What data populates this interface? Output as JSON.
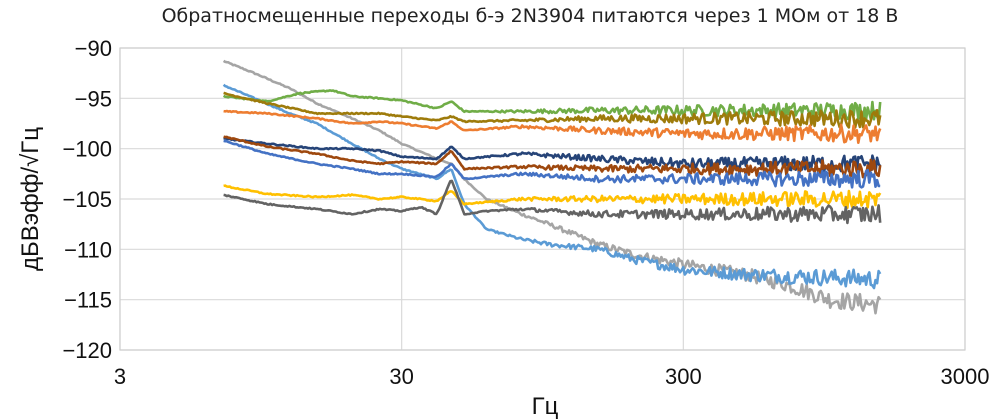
{
  "chart_data": {
    "type": "line",
    "title": "Обратносмещенные переходы б-э 2N3904 питаются через 1 МОм от 18 В",
    "xlabel": "Гц",
    "ylabel": "дБВэфф/√Гц",
    "x_scale": "log",
    "xlim": [
      3,
      3000
    ],
    "ylim": [
      -120,
      -90
    ],
    "x_ticks": [
      3,
      30,
      300,
      3000
    ],
    "x_tick_labels": [
      "3",
      "30",
      "300",
      "3000"
    ],
    "y_ticks": [
      -90,
      -95,
      -100,
      -105,
      -110,
      -115,
      -120
    ],
    "y_tick_labels": [
      "−90",
      "−95",
      "−100",
      "−105",
      "−110",
      "−115",
      "−120"
    ],
    "grid": true,
    "legend": "none",
    "series": [
      {
        "color": "#a5a5a5",
        "points": [
          [
            7,
            -91.3
          ],
          [
            9,
            -92.5
          ],
          [
            12,
            -94
          ],
          [
            15,
            -95.5
          ],
          [
            20,
            -97
          ],
          [
            25,
            -98.2
          ],
          [
            30,
            -99.5
          ],
          [
            40,
            -101
          ],
          [
            45,
            -101.5
          ],
          [
            50,
            -103
          ],
          [
            60,
            -105
          ],
          [
            80,
            -106.5
          ],
          [
            100,
            -107.5
          ],
          [
            150,
            -109.5
          ],
          [
            200,
            -110.5
          ],
          [
            300,
            -111.5
          ],
          [
            500,
            -112.5
          ],
          [
            700,
            -113.5
          ],
          [
            1000,
            -115
          ],
          [
            1500,
            -115.5
          ]
        ]
      },
      {
        "color": "#5b9bd5",
        "points": [
          [
            7,
            -93.7
          ],
          [
            9,
            -95
          ],
          [
            12,
            -96.5
          ],
          [
            15,
            -97.5
          ],
          [
            20,
            -99.5
          ],
          [
            25,
            -101
          ],
          [
            30,
            -102
          ],
          [
            40,
            -103
          ],
          [
            45,
            -102
          ],
          [
            50,
            -105.5
          ],
          [
            60,
            -108
          ],
          [
            80,
            -109
          ],
          [
            100,
            -109.5
          ],
          [
            150,
            -110
          ],
          [
            200,
            -111
          ],
          [
            300,
            -112
          ],
          [
            500,
            -112.5
          ],
          [
            1000,
            -112.8
          ],
          [
            1500,
            -113
          ]
        ]
      },
      {
        "color": "#70ad47",
        "points": [
          [
            7,
            -94.8
          ],
          [
            10,
            -95.3
          ],
          [
            13,
            -94.5
          ],
          [
            17,
            -94.2
          ],
          [
            20,
            -94.8
          ],
          [
            25,
            -95
          ],
          [
            30,
            -95.2
          ],
          [
            40,
            -96
          ],
          [
            45,
            -95.3
          ],
          [
            50,
            -96.3
          ],
          [
            80,
            -96.3
          ],
          [
            150,
            -96.2
          ],
          [
            300,
            -96.2
          ],
          [
            600,
            -96.2
          ],
          [
            1000,
            -96.2
          ],
          [
            1500,
            -96.2
          ]
        ]
      },
      {
        "color": "#9e7b0b",
        "points": [
          [
            7,
            -94.5
          ],
          [
            10,
            -95.5
          ],
          [
            15,
            -96.5
          ],
          [
            20,
            -96.5
          ],
          [
            25,
            -96.5
          ],
          [
            30,
            -96.8
          ],
          [
            40,
            -97.2
          ],
          [
            45,
            -96.8
          ],
          [
            50,
            -97.3
          ],
          [
            80,
            -97.2
          ],
          [
            150,
            -97
          ],
          [
            300,
            -97
          ],
          [
            700,
            -97
          ],
          [
            1500,
            -97
          ]
        ]
      },
      {
        "color": "#ed7d31",
        "points": [
          [
            7,
            -96.3
          ],
          [
            10,
            -96.5
          ],
          [
            15,
            -97
          ],
          [
            20,
            -97.5
          ],
          [
            25,
            -97.3
          ],
          [
            30,
            -97.5
          ],
          [
            40,
            -98
          ],
          [
            45,
            -97.3
          ],
          [
            50,
            -98.2
          ],
          [
            80,
            -97.8
          ],
          [
            150,
            -98.2
          ],
          [
            300,
            -98.5
          ],
          [
            700,
            -98.5
          ],
          [
            1500,
            -98.5
          ]
        ]
      },
      {
        "color": "#264478",
        "points": [
          [
            7,
            -99
          ],
          [
            10,
            -99.5
          ],
          [
            15,
            -100
          ],
          [
            20,
            -100
          ],
          [
            25,
            -100.2
          ],
          [
            30,
            -100.8
          ],
          [
            40,
            -101
          ],
          [
            45,
            -99.8
          ],
          [
            50,
            -101
          ],
          [
            80,
            -100.5
          ],
          [
            150,
            -101
          ],
          [
            300,
            -101.5
          ],
          [
            700,
            -101.5
          ],
          [
            1500,
            -101.5
          ]
        ]
      },
      {
        "color": "#9e480e",
        "points": [
          [
            7,
            -98.8
          ],
          [
            10,
            -99.8
          ],
          [
            15,
            -100.5
          ],
          [
            20,
            -101.2
          ],
          [
            25,
            -101.5
          ],
          [
            30,
            -101.3
          ],
          [
            40,
            -101.5
          ],
          [
            45,
            -100.2
          ],
          [
            50,
            -102
          ],
          [
            80,
            -101.8
          ],
          [
            150,
            -102
          ],
          [
            300,
            -102
          ],
          [
            700,
            -102
          ],
          [
            1500,
            -102
          ]
        ]
      },
      {
        "color": "#4472c4",
        "points": [
          [
            7,
            -99.2
          ],
          [
            10,
            -100.5
          ],
          [
            15,
            -101.5
          ],
          [
            20,
            -102
          ],
          [
            25,
            -102.5
          ],
          [
            30,
            -102.5
          ],
          [
            40,
            -102.8
          ],
          [
            45,
            -101.5
          ],
          [
            50,
            -103
          ],
          [
            80,
            -102.5
          ],
          [
            150,
            -103
          ],
          [
            300,
            -103
          ],
          [
            700,
            -103
          ],
          [
            1500,
            -103
          ]
        ]
      },
      {
        "color": "#ffc000",
        "points": [
          [
            7,
            -103.7
          ],
          [
            10,
            -104.5
          ],
          [
            15,
            -104.8
          ],
          [
            20,
            -104.6
          ],
          [
            25,
            -105
          ],
          [
            30,
            -104.8
          ],
          [
            40,
            -105.2
          ],
          [
            45,
            -104.2
          ],
          [
            50,
            -105.5
          ],
          [
            80,
            -105
          ],
          [
            150,
            -105
          ],
          [
            300,
            -105
          ],
          [
            700,
            -105
          ],
          [
            1500,
            -105
          ]
        ]
      },
      {
        "color": "#636363",
        "points": [
          [
            7,
            -104.6
          ],
          [
            10,
            -105.5
          ],
          [
            15,
            -106
          ],
          [
            20,
            -106.5
          ],
          [
            25,
            -106
          ],
          [
            30,
            -106.2
          ],
          [
            35,
            -105.8
          ],
          [
            40,
            -106.5
          ],
          [
            45,
            -103
          ],
          [
            50,
            -106.5
          ],
          [
            60,
            -106.2
          ],
          [
            80,
            -106
          ],
          [
            150,
            -106.5
          ],
          [
            300,
            -106.5
          ],
          [
            700,
            -106.5
          ],
          [
            1500,
            -106.5
          ]
        ]
      }
    ]
  }
}
